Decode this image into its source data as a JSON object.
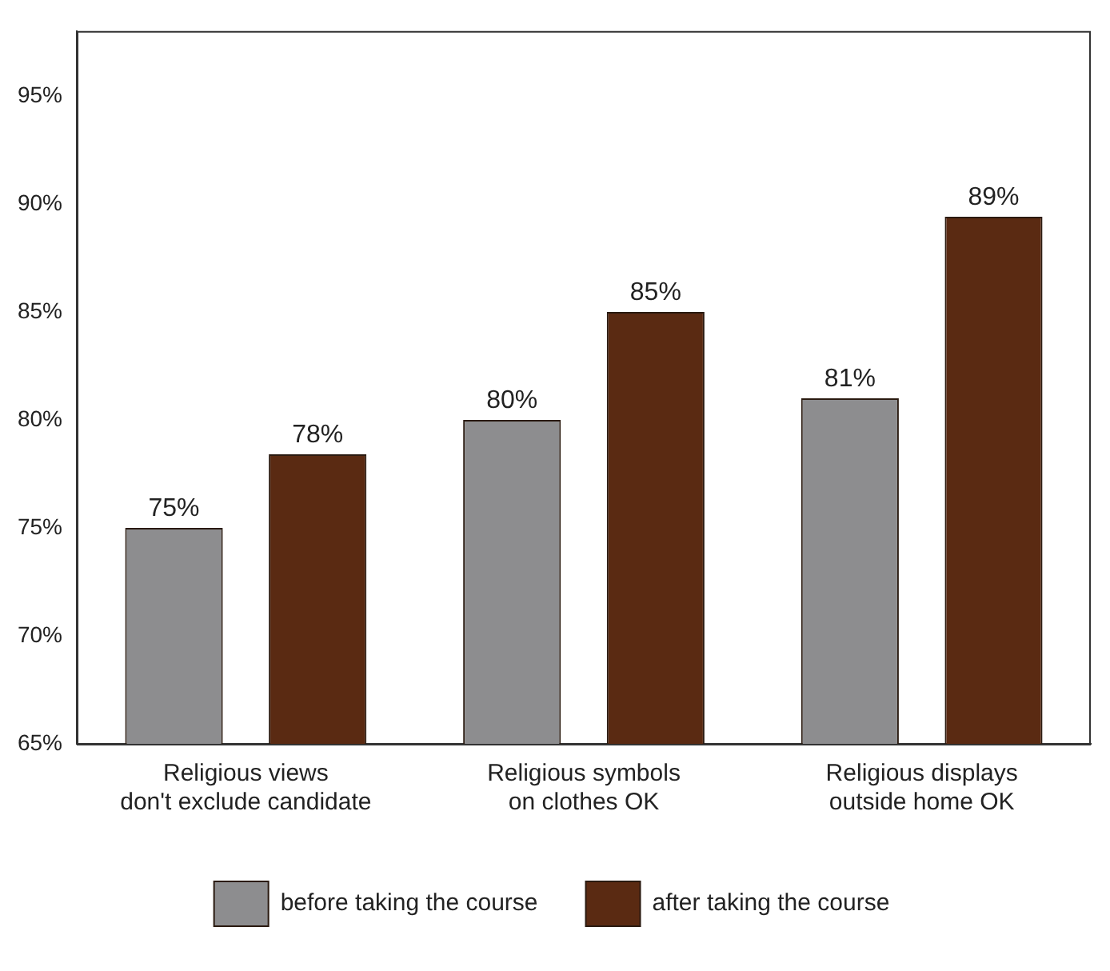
{
  "chart_data": {
    "type": "bar",
    "categories": [
      "Religious views don't exclude candidate",
      "Religious symbols on clothes OK",
      "Religious displays outside home OK"
    ],
    "series": [
      {
        "name": "before taking the course",
        "color": "#8d8d8f",
        "values": [
          75,
          80,
          81
        ],
        "value_labels": [
          "75%",
          "80%",
          "81%"
        ]
      },
      {
        "name": "after taking the course",
        "color": "#5a2a12",
        "values": [
          78.4,
          85,
          89.4
        ],
        "value_labels": [
          "78%",
          "85%",
          "89%"
        ]
      }
    ],
    "ylim": [
      65,
      98
    ],
    "yticks": [
      {
        "value": 65,
        "label": "65%"
      },
      {
        "value": 70,
        "label": "70%"
      },
      {
        "value": 75,
        "label": "75%"
      },
      {
        "value": 80,
        "label": "80%"
      },
      {
        "value": 85,
        "label": "85%"
      },
      {
        "value": 90,
        "label": "90%"
      },
      {
        "value": 95,
        "label": "95%"
      }
    ],
    "grid": false,
    "legend": "bottom"
  }
}
